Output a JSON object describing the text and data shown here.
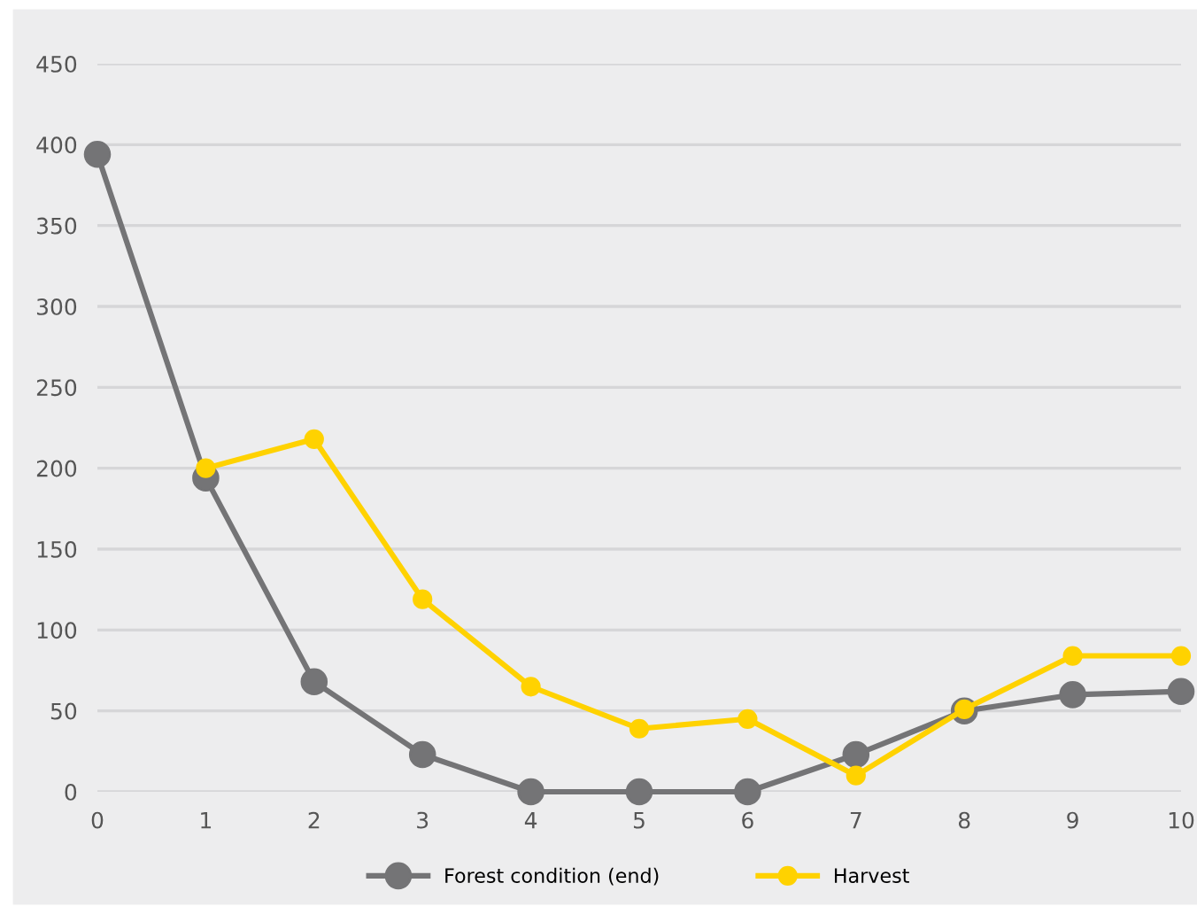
{
  "chart_data": {
    "type": "line",
    "x": [
      0,
      1,
      2,
      3,
      4,
      5,
      6,
      7,
      8,
      9,
      10
    ],
    "series": [
      {
        "name": "Forest condition (end)",
        "color": "#747476",
        "values": [
          394,
          194,
          68,
          23,
          0,
          0,
          0,
          23,
          50,
          60,
          62
        ]
      },
      {
        "name": "Harvest",
        "color": "#ffd200",
        "x": [
          1,
          2,
          3,
          4,
          5,
          6,
          7,
          8,
          9,
          10
        ],
        "values": [
          200,
          218,
          119,
          65,
          39,
          45,
          10,
          51,
          84,
          84
        ]
      }
    ],
    "xlim": [
      0,
      10
    ],
    "xticks": [
      0,
      1,
      2,
      3,
      4,
      5,
      6,
      7,
      8,
      9,
      10
    ],
    "ylim": [
      0,
      450
    ],
    "yticks": [
      0,
      50,
      100,
      150,
      200,
      250,
      300,
      350,
      400,
      450
    ],
    "grid": "y",
    "legend": "bottom",
    "marker": "circle",
    "line_style": "solid"
  }
}
